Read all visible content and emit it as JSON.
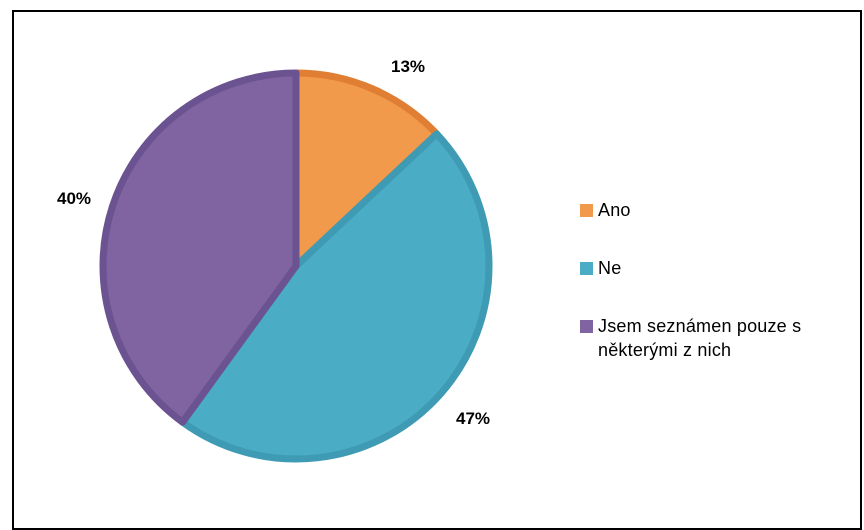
{
  "chart_data": {
    "type": "pie",
    "categories": [
      "Ano",
      "Ne",
      "Jsem seznámen pouze s některými z nich"
    ],
    "values": [
      13,
      47,
      40
    ],
    "data_labels": [
      "13%",
      "47%",
      "40%"
    ],
    "colors": [
      "#F29A4B",
      "#4AACC5",
      "#8064A2"
    ],
    "border_colors": [
      "#E07F34",
      "#3E9BB3",
      "#6B5290"
    ],
    "title": "",
    "legend_position": "right"
  }
}
